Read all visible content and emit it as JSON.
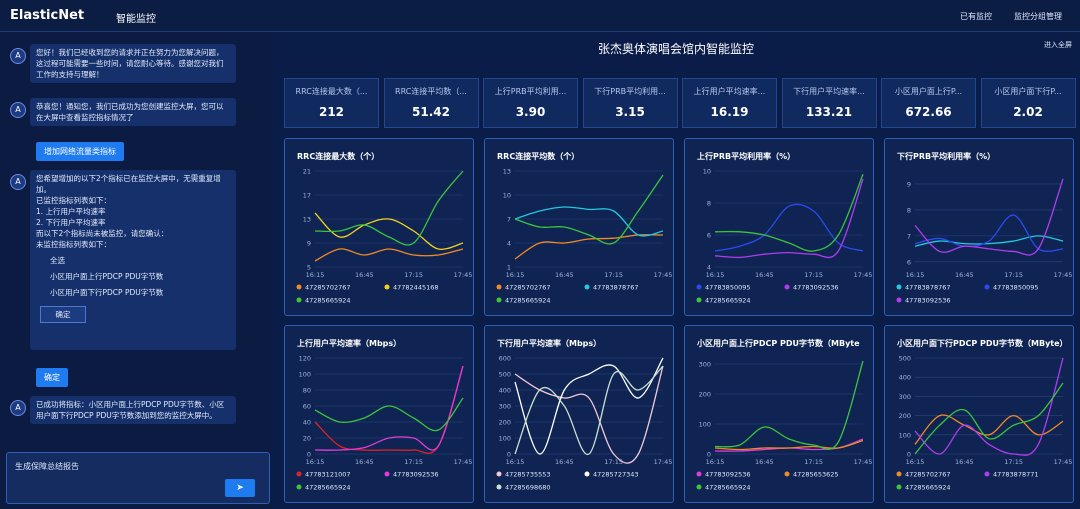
{
  "header": {
    "logo": "ElasticNet",
    "nav": "智能监控",
    "actions": [
      "已有监控",
      "监控分组管理"
    ]
  },
  "chat": {
    "msg1": "您好！我们已经收到您的请求并正在努力为您解决问题，这过程可能需要一些时间，请您耐心等待。感谢您对我们工作的支持与理解！",
    "msg2": "恭喜您！通知您，我们已成功为您创建监控大屏，您可以在大屏中查看监控指标情况了",
    "user1": "增加网络流量类指标",
    "msg3": {
      "lines": [
        "您希望增加的以下2个指标已在监控大屏中，无需重复增加。",
        "已监控指标列表如下：",
        "1. 上行用户平均速率",
        "2. 下行用户平均速率",
        "而以下2个指标尚未被监控，请您确认：",
        "未监控指标列表如下："
      ],
      "options": [
        "全选",
        "小区用户面上行PDCP PDU字节数",
        "小区用户面下行PDCP PDU字节数"
      ],
      "confirm": "确定"
    },
    "user2": "确定",
    "msg4": "已成功将指标：小区用户面上行PDCP PDU字节数、小区用户面下行PDCP PDU字节数添加到您的监控大屏中。",
    "input": "生成保障总结报告"
  },
  "dashboard": {
    "title": "张杰奥体演唱会馆内智能监控",
    "fullscreen": "进入全屏",
    "kpis": [
      {
        "label": "RRC连接最大数（...",
        "value": "212"
      },
      {
        "label": "RRC连接平均数（...",
        "value": "51.42"
      },
      {
        "label": "上行PRB平均利用...",
        "value": "3.90"
      },
      {
        "label": "下行PRB平均利用...",
        "value": "3.15"
      },
      {
        "label": "上行用户平均速率...",
        "value": "16.19"
      },
      {
        "label": "下行用户平均速率...",
        "value": "133.21"
      },
      {
        "label": "小区用户面上行P...",
        "value": "672.66"
      },
      {
        "label": "小区用户面下行P...",
        "value": "2.02"
      }
    ]
  },
  "chart_data": [
    {
      "type": "line",
      "title": "RRC连接最大数（个）",
      "categories": [
        "16:15",
        null,
        "16:45",
        null,
        "17:15",
        null,
        "17:45"
      ],
      "ylim": [
        5,
        21
      ],
      "yticks": [
        5,
        9,
        13,
        17,
        21
      ],
      "grid": true,
      "series": [
        {
          "name": "47285702767",
          "color": "#f08a24",
          "values": [
            6,
            8,
            7,
            8,
            7,
            7,
            8
          ]
        },
        {
          "name": "47782445168",
          "color": "#f2d21b",
          "values": [
            14,
            10,
            12,
            13,
            11,
            8,
            9
          ]
        },
        {
          "name": "47285665924",
          "color": "#3cc43c",
          "values": [
            11,
            11,
            12,
            10,
            9,
            16,
            21
          ]
        }
      ]
    },
    {
      "type": "line",
      "title": "RRC连接平均数（个）",
      "categories": [
        "16:15",
        null,
        "16:45",
        null,
        "17:15",
        null,
        "17:45"
      ],
      "ylim": [
        1,
        13
      ],
      "yticks": [
        1,
        4,
        7,
        10,
        13
      ],
      "grid": true,
      "series": [
        {
          "name": "47285702767",
          "color": "#f08a24",
          "values": [
            2,
            4,
            4,
            4.5,
            4.6,
            5,
            5
          ]
        },
        {
          "name": "47783878767",
          "color": "#22c8e0",
          "values": [
            7,
            8,
            8.5,
            8.2,
            8,
            5,
            5.5
          ]
        },
        {
          "name": "47285665924",
          "color": "#3cc43c",
          "values": [
            7,
            6,
            6,
            5,
            4,
            8,
            12.5
          ]
        }
      ]
    },
    {
      "type": "line",
      "title": "上行PRB平均利用率（%）",
      "categories": [
        "16:15",
        null,
        "16:45",
        null,
        "17:15",
        null,
        "17:45"
      ],
      "ylim": [
        4,
        10
      ],
      "yticks": [
        4,
        6,
        8,
        10
      ],
      "grid": true,
      "series": [
        {
          "name": "47783850095",
          "color": "#2a4bf0",
          "values": [
            5,
            5.3,
            6,
            7.8,
            7.5,
            5.5,
            5
          ]
        },
        {
          "name": "47783092536",
          "color": "#b03cf0",
          "values": [
            4.7,
            4.6,
            4.8,
            4.9,
            4.8,
            5,
            9.5
          ]
        },
        {
          "name": "47285665924",
          "color": "#3cc43c",
          "values": [
            6.2,
            6.2,
            6,
            5.5,
            5,
            6,
            9.8
          ]
        }
      ]
    },
    {
      "type": "line",
      "title": "下行PRB平均利用率（%）",
      "categories": [
        "16:15",
        null,
        "16:45",
        null,
        "17:15",
        null,
        "17:45"
      ],
      "ylim": [
        5.8,
        9.5
      ],
      "yticks": [
        6,
        7,
        8,
        9
      ],
      "grid": true,
      "series": [
        {
          "name": "47783878767",
          "color": "#22c8e0",
          "values": [
            6.6,
            6.8,
            6.7,
            6.7,
            6.8,
            7,
            6.8
          ]
        },
        {
          "name": "47783850095",
          "color": "#2a4bf0",
          "values": [
            6.7,
            6.9,
            6.6,
            6.8,
            7.8,
            6.5,
            6.5
          ]
        },
        {
          "name": "47783092536",
          "color": "#b03cf0",
          "values": [
            7.4,
            6.4,
            6.6,
            6.5,
            6.4,
            6.5,
            9.2
          ]
        }
      ]
    },
    {
      "type": "line",
      "title": "上行用户平均速率（Mbps）",
      "categories": [
        "16:15",
        null,
        "16:45",
        null,
        "17:15",
        null,
        "17:45"
      ],
      "ylim": [
        0,
        120
      ],
      "yticks": [
        0,
        20,
        40,
        60,
        80,
        100,
        120
      ],
      "grid": true,
      "series": [
        {
          "name": "47783121007",
          "color": "#e02424",
          "values": [
            40,
            10,
            5,
            5,
            5,
            10,
            110
          ]
        },
        {
          "name": "47783092536",
          "color": "#e03cd8",
          "values": [
            5,
            5,
            8,
            20,
            20,
            10,
            110
          ]
        },
        {
          "name": "47285665924",
          "color": "#3cc43c",
          "values": [
            55,
            40,
            45,
            60,
            45,
            30,
            70
          ]
        }
      ]
    },
    {
      "type": "line",
      "title": "下行用户平均速率（Mbps）",
      "categories": [
        "16:15",
        null,
        "16:45",
        null,
        "17:15",
        null,
        "17:45"
      ],
      "ylim": [
        0,
        600
      ],
      "yticks": [
        0,
        100,
        200,
        300,
        400,
        500,
        600
      ],
      "grid": true,
      "series": [
        {
          "name": "47285735553",
          "color": "#f0c8d8",
          "values": [
            500,
            400,
            350,
            350,
            0,
            0,
            550
          ]
        },
        {
          "name": "47285727343",
          "color": "#ffffff",
          "values": [
            450,
            0,
            400,
            500,
            550,
            350,
            600
          ]
        },
        {
          "name": "47285698680",
          "color": "#c8e0d0",
          "values": [
            0,
            400,
            300,
            0,
            500,
            400,
            550
          ]
        }
      ]
    },
    {
      "type": "line",
      "title": "小区用户面上行PDCP PDU字节数（MByte",
      "categories": [
        "16:15",
        null,
        "16:45",
        null,
        "17:15",
        null,
        "17:45"
      ],
      "ylim": [
        0,
        320
      ],
      "yticks": [
        0,
        100,
        200,
        300
      ],
      "grid": true,
      "series": [
        {
          "name": "47783092536",
          "color": "#e03cd8",
          "values": [
            10,
            10,
            15,
            20,
            15,
            20,
            50
          ]
        },
        {
          "name": "47285653625",
          "color": "#f08a24",
          "values": [
            20,
            15,
            20,
            20,
            25,
            20,
            45
          ]
        },
        {
          "name": "47285665924",
          "color": "#3cc43c",
          "values": [
            25,
            30,
            90,
            50,
            30,
            40,
            310
          ]
        }
      ]
    },
    {
      "type": "line",
      "title": "小区用户面下行PDCP PDU字节数（MByte）",
      "categories": [
        "16:15",
        null,
        "16:45",
        null,
        "17:15",
        null,
        "17:45"
      ],
      "ylim": [
        0,
        500
      ],
      "yticks": [
        0,
        100,
        200,
        300,
        400,
        500
      ],
      "grid": true,
      "series": [
        {
          "name": "47285702767",
          "color": "#f08a24",
          "values": [
            50,
            200,
            150,
            100,
            200,
            100,
            170
          ]
        },
        {
          "name": "47783878771",
          "color": "#b03cf0",
          "values": [
            120,
            0,
            150,
            50,
            0,
            50,
            500
          ]
        },
        {
          "name": "47285665924",
          "color": "#3cc43c",
          "values": [
            0,
            150,
            230,
            80,
            150,
            200,
            370
          ]
        }
      ]
    }
  ]
}
